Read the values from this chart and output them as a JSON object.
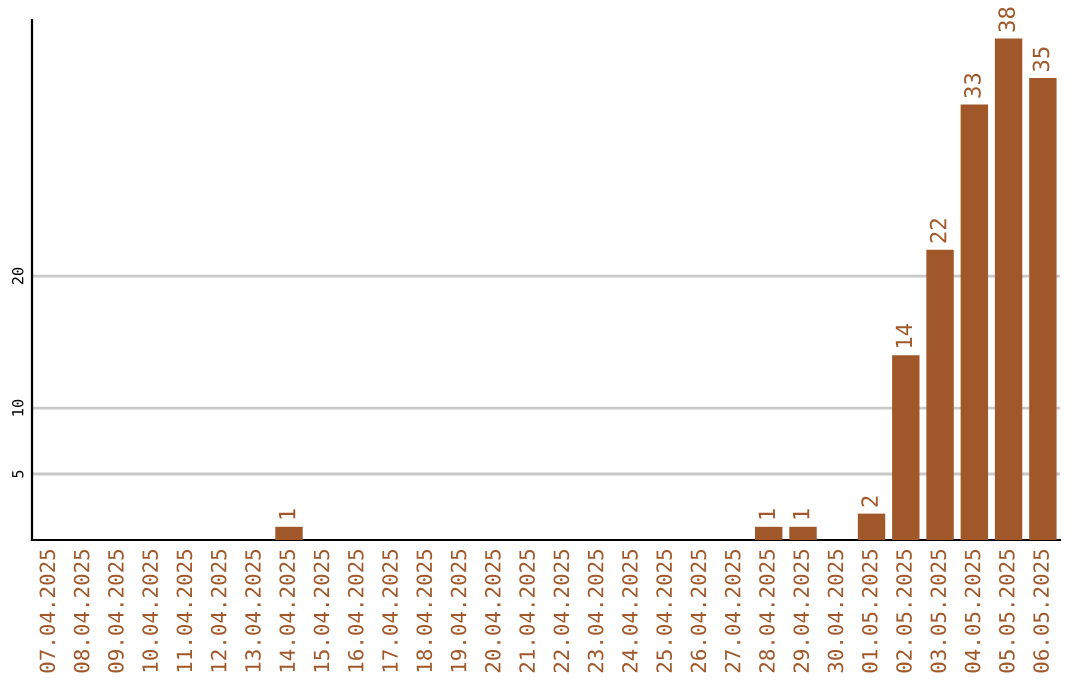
{
  "chart_data": {
    "type": "bar",
    "categories": [
      "07.04.2025",
      "08.04.2025",
      "09.04.2025",
      "10.04.2025",
      "11.04.2025",
      "12.04.2025",
      "13.04.2025",
      "14.04.2025",
      "15.04.2025",
      "16.04.2025",
      "17.04.2025",
      "18.04.2025",
      "19.04.2025",
      "20.04.2025",
      "21.04.2025",
      "22.04.2025",
      "23.04.2025",
      "24.04.2025",
      "25.04.2025",
      "26.04.2025",
      "27.04.2025",
      "28.04.2025",
      "29.04.2025",
      "30.04.2025",
      "01.05.2025",
      "02.05.2025",
      "03.05.2025",
      "04.05.2025",
      "05.05.2025",
      "06.05.2025"
    ],
    "values": [
      0,
      0,
      0,
      0,
      0,
      0,
      0,
      1,
      0,
      0,
      0,
      0,
      0,
      0,
      0,
      0,
      0,
      0,
      0,
      0,
      0,
      1,
      1,
      0,
      2,
      14,
      22,
      33,
      38,
      35
    ],
    "value_labels": [
      null,
      null,
      null,
      null,
      null,
      null,
      null,
      "1",
      null,
      null,
      null,
      null,
      null,
      null,
      null,
      null,
      null,
      null,
      null,
      null,
      null,
      "1",
      "1",
      null,
      "2",
      "14",
      "22",
      "33",
      "38",
      "35"
    ],
    "color": "#a0582a",
    "ylim": [
      0,
      39.4
    ],
    "yticks": [
      5,
      10,
      20
    ],
    "grid": "y"
  }
}
